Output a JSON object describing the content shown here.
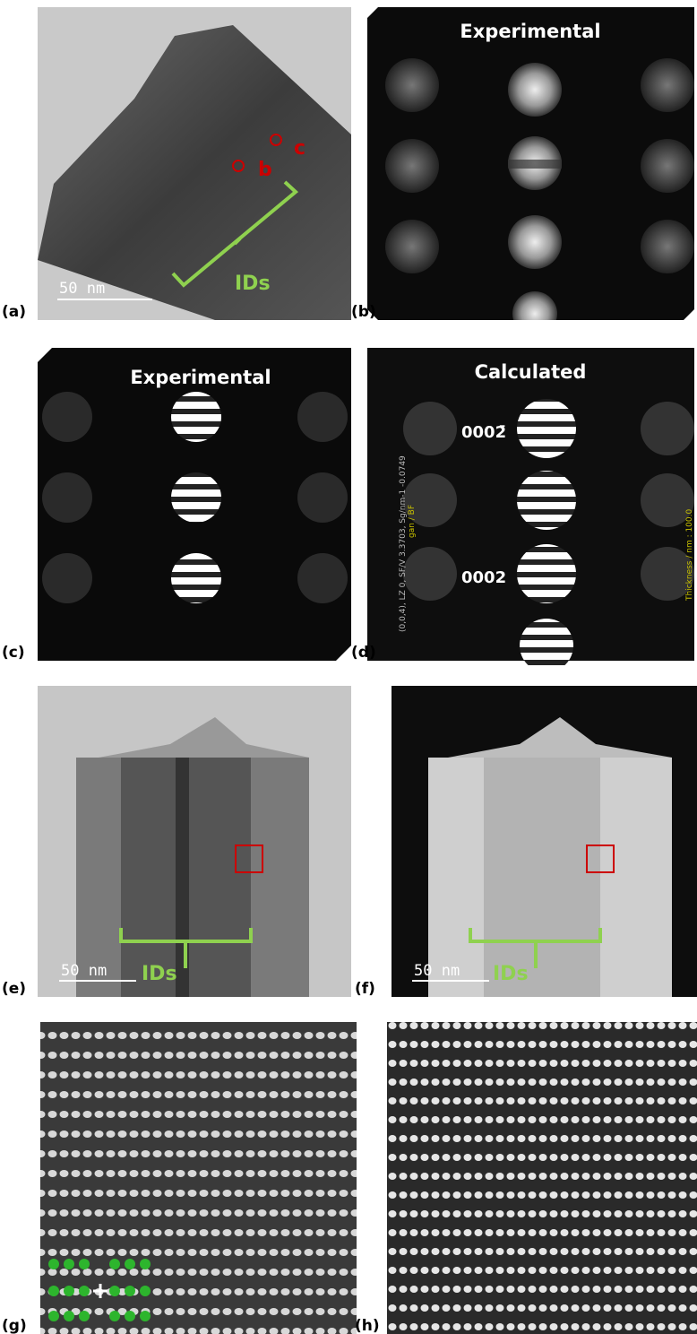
{
  "panels": [
    {
      "label": "(a)",
      "scale_bar": "50 nm",
      "bracket": "IDs",
      "markers": [
        "b",
        "c"
      ]
    },
    {
      "label": "(b)",
      "title": "Experimental"
    },
    {
      "label": "(c)",
      "title": "Experimental"
    },
    {
      "label": "(d)",
      "title": "Calculated",
      "reflections": [
        "0002̄",
        "0002"
      ],
      "info": "(0,0,4), LZ 0, SF/V 3.3703, Sg/nm-1 -0.0749",
      "mode": "gan / BF",
      "thickness": "Thickness / nm : 100.0"
    },
    {
      "label": "(e)",
      "scale_bar": "50 nm",
      "bracket": "IDs"
    },
    {
      "label": "(f)",
      "scale_bar": "50 nm",
      "bracket": "IDs"
    },
    {
      "label": "(g)"
    },
    {
      "label": "(h)"
    }
  ]
}
